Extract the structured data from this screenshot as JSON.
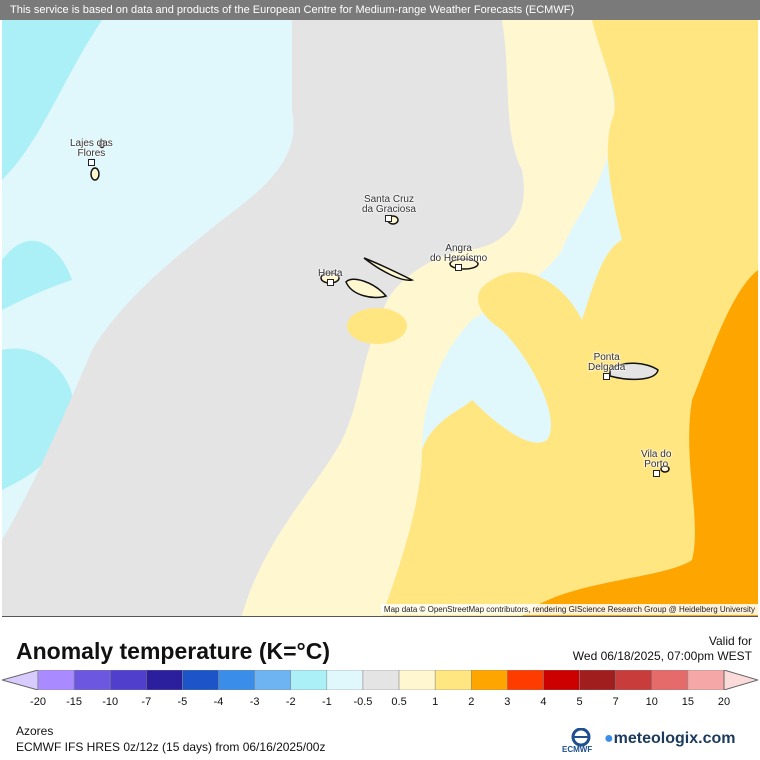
{
  "banner": "This service is based on data and products of the European Centre for Medium-range Weather Forecasts (ECMWF)",
  "places": [
    {
      "label": "Lajes das\nFlores"
    },
    {
      "label": "Santa Cruz\nda Graciosa"
    },
    {
      "label": "Angra\ndo Heroísmo"
    },
    {
      "label": "Horta"
    },
    {
      "label": "Ponta\nDelgada"
    },
    {
      "label": "Vila do\nPorto"
    }
  ],
  "attribution": "Map data © OpenStreetMap contributors, rendering GIScience Research Group @ Heidelberg University",
  "title": "Anomaly temperature (K=°C)",
  "valid_label": "Valid for",
  "valid_time": "Wed 06/18/2025, 07:00pm WEST",
  "colorbar": {
    "colors": [
      "#a98bff",
      "#6c58e0",
      "#4f3fcc",
      "#2b1f9e",
      "#1d55c9",
      "#3a8de8",
      "#6eb3f2",
      "#aaf0f6",
      "#e0f8fc",
      "#e4e4e4",
      "#fff7d0",
      "#ffe680",
      "#ffa500",
      "#ff3c00",
      "#cc0000",
      "#a01e1e",
      "#c83c3c",
      "#e56b6b",
      "#f5a6a6"
    ],
    "ticks": [
      "-20",
      "-15",
      "-10",
      "-7",
      "-5",
      "-4",
      "-3",
      "-2",
      "-1",
      "-0.5",
      "0.5",
      "1",
      "2",
      "3",
      "4",
      "5",
      "7",
      "10",
      "15",
      "20"
    ],
    "under_color": "#d8ccff",
    "over_color": "#fbdada"
  },
  "region": "Azores",
  "model_line": "ECMWF IFS HRES 0z/12z (15 days) from  06/16/2025/00z",
  "logos": {
    "ecmwf": "ECMWF",
    "meteologix": "meteologix.com"
  }
}
